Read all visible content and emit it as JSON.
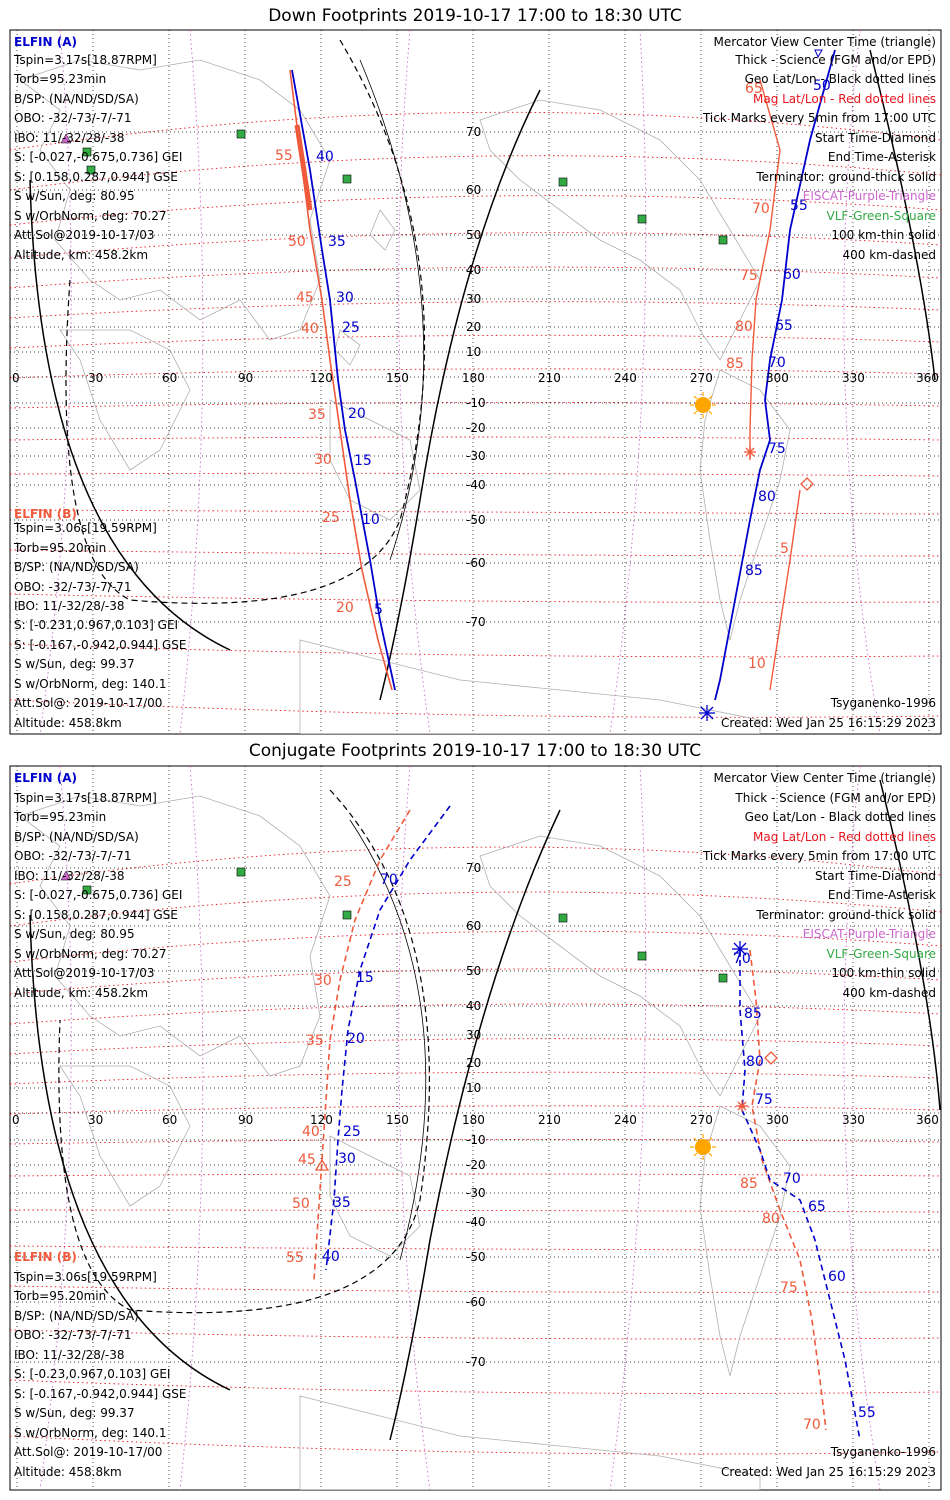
{
  "panels": [
    {
      "title": "Down Footprints 2019-10-17 17:00 to 18:30 UTC",
      "elfin_a": {
        "header": "ELFIN (A)",
        "lines": [
          "Tspin=3.17s[18.87RPM]",
          "Torb=95.23min",
          "B/SP: (NA/ND/SD/SA)",
          "OBO: -32/-73/-7/-71",
          "IBO: 11/-32/28/-38",
          "S: [-0.027,-0.675,0.736] GEI",
          "S: [0.158,0.287,0.944] GSE",
          "S w/Sun, deg: 80.95",
          "S w/OrbNorm, deg: 70.27",
          "Att.Sol@2019-10-17/03",
          "Altitude, km: 458.2km"
        ]
      },
      "elfin_b": {
        "header": "ELFIN (B)",
        "lines": [
          "Tspin=3.06s[19.59RPM]",
          "Torb=95.20min",
          "B/SP: (NA/ND/SD/SA)",
          "OBO: -32/-73/-7/-71",
          "IBO: 11/-32/28/-38",
          "S: [-0.231,0.967,0.103] GEI",
          "S: [-0.167,-0.942,0.944] GSE",
          "S w/Sun, deg: 99.37",
          "S w/OrbNorm, deg: 140.1",
          "Att.Sol@: 2019-10-17/00",
          "Altitude: 458.8km"
        ]
      },
      "legend": [
        {
          "text": "Mercator View Center Time (triangle)",
          "color": "#000000"
        },
        {
          "text": "Thick - Science (FGM and/or EPD)",
          "color": "#000000"
        },
        {
          "text": "Geo Lat/Lon - Black dotted lines",
          "color": "#000000"
        },
        {
          "text": "Mag Lat/Lon - Red dotted lines",
          "color": "#e8141e"
        },
        {
          "text": "Tick Marks every 5min from 17:00 UTC",
          "color": "#000000"
        },
        {
          "text": "Start Time-Diamond",
          "color": "#000000"
        },
        {
          "text": "End Time-Asterisk",
          "color": "#000000"
        },
        {
          "text": "Terminator: ground-thick solid",
          "color": "#000000"
        },
        {
          "text": "EISCAT-Purple-Triangle",
          "color": "#cc66cc"
        },
        {
          "text": "VLF-Green-Square",
          "color": "#33aa44"
        },
        {
          "text": "100 km-thin solid",
          "color": "#000000"
        },
        {
          "text": "400 km-dashed",
          "color": "#000000"
        }
      ],
      "model": "Tsyganenko-1996",
      "created": "Created: Wed Jan 25 16:15:29 2023",
      "lon_labels": [
        "0",
        "30",
        "60",
        "90",
        "120",
        "150",
        "180",
        "210",
        "240",
        "270",
        "300",
        "330",
        "360"
      ],
      "lat_labels": [
        "70",
        "60",
        "50",
        "40",
        "30",
        "20",
        "10",
        "-10",
        "-20",
        "-30",
        "-40",
        "-50",
        "-60",
        "-70"
      ],
      "track_a_ticks": [
        "40",
        "35",
        "30",
        "25",
        "20",
        "15",
        "10",
        "5",
        "50",
        "55",
        "60",
        "65",
        "70",
        "75",
        "80",
        "85"
      ],
      "track_b_ticks": [
        "55",
        "50",
        "45",
        "40",
        "35",
        "30",
        "25",
        "20",
        "65",
        "70",
        "75",
        "80",
        "85",
        "5",
        "10"
      ]
    },
    {
      "title": "Conjugate Footprints 2019-10-17 17:00 to 18:30 UTC",
      "elfin_a": {
        "header": "ELFIN (A)",
        "lines": [
          "Tspin=3.17s[18.87RPM]",
          "Torb=95.23min",
          "B/SP: (NA/ND/SD/SA)",
          "OBO: -32/-73/-7/-71",
          "IBO: 11/-32/28/-38",
          "S: [-0.027,-0.675,0.736] GEI",
          "S: [0.158,0.287,0.944] GSE",
          "S w/Sun, deg: 80.95",
          "S w/OrbNorm, deg: 70.27",
          "Att.Sol@2019-10-17/03",
          "Altitude, km: 458.2km"
        ]
      },
      "elfin_b": {
        "header": "ELFIN (B)",
        "lines": [
          "Tspin=3.06s[19.59RPM]",
          "Torb=95.20min",
          "B/SP: (NA/ND/SD/SA)",
          "OBO: -32/-73/-7/-71",
          "IBO: 11/-32/28/-38",
          "S: [-0.23,0.967,0.103] GEI",
          "S: [-0.167,-0.942,0.944] GSE",
          "S w/Sun, deg: 99.37",
          "S w/OrbNorm, deg: 140.1",
          "Att.Sol@: 2019-10-17/00",
          "Altitude: 458.8km"
        ]
      },
      "legend": [
        {
          "text": "Mercator View Center Time (triangle)",
          "color": "#000000"
        },
        {
          "text": "Thick - Science (FGM and/or EPD)",
          "color": "#000000"
        },
        {
          "text": "Geo Lat/Lon - Black dotted lines",
          "color": "#000000"
        },
        {
          "text": "Mag Lat/Lon - Red dotted lines",
          "color": "#e8141e"
        },
        {
          "text": "Tick Marks every 5min from 17:00 UTC",
          "color": "#000000"
        },
        {
          "text": "Start Time-Diamond",
          "color": "#000000"
        },
        {
          "text": "End Time-Asterisk",
          "color": "#000000"
        },
        {
          "text": "Terminator: ground-thick solid",
          "color": "#000000"
        },
        {
          "text": "EISCAT-Purple-Triangle",
          "color": "#cc66cc"
        },
        {
          "text": "VLF-Green-Square",
          "color": "#33aa44"
        },
        {
          "text": "100 km-thin solid",
          "color": "#000000"
        },
        {
          "text": "400 km-dashed",
          "color": "#000000"
        }
      ],
      "model": "Tsyganenko-1996",
      "created": "Created: Wed Jan 25 16:15:29 2023",
      "lon_labels": [
        "0",
        "30",
        "60",
        "90",
        "120",
        "150",
        "180",
        "210",
        "240",
        "270",
        "300",
        "330",
        "360"
      ],
      "lat_labels": [
        "70",
        "60",
        "50",
        "40",
        "30",
        "20",
        "10",
        "-10",
        "-20",
        "-30",
        "-40",
        "-50",
        "-60",
        "-70"
      ],
      "track_a_ticks": [
        "70",
        "15",
        "20",
        "25",
        "30",
        "35",
        "40",
        "70",
        "85",
        "80",
        "75",
        "70",
        "65",
        "60",
        "55"
      ],
      "track_b_ticks": [
        "25",
        "30",
        "35",
        "40",
        "45",
        "50",
        "55",
        "85",
        "80",
        "75",
        "70"
      ]
    }
  ],
  "colors": {
    "elfin_a": "#0000cc",
    "elfin_b": "#f05a3c",
    "mag_grid": "#e8141e",
    "geo_grid": "#000000",
    "vlf": "#33aa44",
    "eiscat": "#cc66cc",
    "sun": "#ffa500",
    "coast": "#b0b0b0"
  }
}
